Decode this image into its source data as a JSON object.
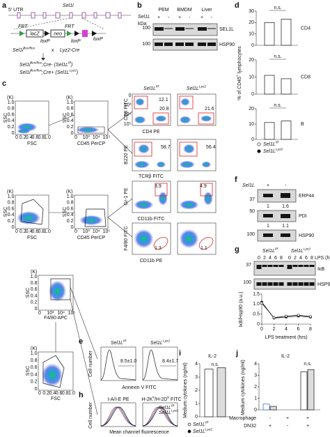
{
  "a": {
    "label": "a",
    "utr": "5' UTR",
    "gene": "Sel1l",
    "frt1": "FRT",
    "lacz": "lacZ",
    "loxp1": "loxP",
    "neo": "neo",
    "frt2": "FRT",
    "loxp2": "loxP",
    "loxp3": "loxP",
    "cross_left": [
      "Sel1l",
      "flox/flox"
    ],
    "x": "x",
    "cross_right": "Lyz2-Cre",
    "ff": [
      "Sel1l",
      "flox/flox",
      ";Cre- (Sel1L",
      "f/f",
      ")"
    ],
    "lyz": [
      "Sel1l",
      "flox/flox",
      ";Cre+ (Sel1L",
      "Lyz2",
      ")"
    ]
  },
  "b": {
    "label": "b",
    "gene": "Sel1L",
    "kda": "kDa",
    "groups": [
      "PEM",
      "BMDM",
      "Liver"
    ],
    "genotype": [
      "+",
      "-",
      "+",
      "-",
      "+",
      "-"
    ],
    "mw": [
      100,
      100
    ],
    "bands": [
      "SEL1L",
      "HSP90"
    ]
  },
  "c": {
    "label": "c",
    "ssc": "SSC",
    "fsc": "FSC",
    "k": "(K)",
    "cd45": "CD45 PerCP",
    "cols": [
      [
        "Sel1L",
        "f/f"
      ],
      [
        "Sel1L",
        "Lyz2"
      ]
    ],
    "cd8": "CD8 FITC",
    "cd4": "CD4 PE",
    "b220": "B220 PE",
    "tcrb": "TCRβ FITC",
    "gr1": "Gr-1 PE",
    "cd11b_fitc": "CD11b FITC",
    "f480_fitc": "F4/80 FITC",
    "cd11b_pe": "CD11b PE",
    "f480_apc": "F4/80 APC",
    "scatter_ticks": [
      "1.0",
      "0.8",
      "0.6",
      "0.4",
      "0.2",
      "0"
    ],
    "log_ticks": [
      "0",
      "10³",
      "10⁴",
      "10⁵"
    ],
    "gates": {
      "cd4_ff": [
        12.1,
        20.8
      ],
      "cd4_lyz": [
        21.6
      ],
      "b220": [
        58.7,
        56.4
      ],
      "gr1": [
        3.9,
        4.9
      ],
      "f480": [
        1.3,
        1.1
      ]
    }
  },
  "d": {
    "label": "d",
    "ylabel": [
      "% of CD45",
      "+",
      " lymphocytes"
    ],
    "ns": "n.s.",
    "plots": [
      {
        "name": "CD4",
        "ylim": [
          0,
          30
        ],
        "yticks": [
          0,
          10,
          20,
          30
        ],
        "values": [
          20,
          23
        ]
      },
      {
        "name": "CD8",
        "ylim": [
          0,
          20
        ],
        "yticks": [
          0,
          10,
          20
        ],
        "values": [
          11,
          9
        ]
      },
      {
        "name": "B",
        "ylim": [
          0,
          20
        ],
        "yticks": [
          0,
          10,
          20
        ],
        "values": [
          11,
          12
        ]
      }
    ],
    "legend": [
      [
        "Sel1L",
        "f/f"
      ],
      [
        "Sel1L",
        "Lyz2"
      ]
    ]
  },
  "e": {
    "label": "e",
    "cols": [
      [
        "Sel1L",
        "f/f"
      ],
      [
        "Sel1L",
        "Lyz2"
      ]
    ],
    "values": [
      "8.5±1.0",
      "8.4±1.7"
    ],
    "ylabel": "Cell number",
    "xlabel": "Annexin V FITC"
  },
  "f": {
    "label": "f",
    "gene": "Sel1L",
    "genotype": [
      "+",
      "-"
    ],
    "mw": [
      37,
      50,
      100
    ],
    "bands": [
      "ERP44",
      "PDI",
      "HSP90"
    ],
    "quant": [
      [
        1,
        1.6
      ],
      [
        1,
        1.1
      ]
    ]
  },
  "g": {
    "label": "g",
    "cols": [
      [
        "Sel1L",
        "f/f"
      ],
      [
        "Sel1L",
        "Lyz2"
      ]
    ],
    "times": [
      0,
      2,
      4,
      6,
      8
    ],
    "lps": "LPS (h)",
    "mw": [
      37,
      100
    ],
    "bands": [
      "IκB",
      "HSP90"
    ],
    "chart": {
      "type": "line",
      "ylabel": "IκB/Hsp90 (a.u.)",
      "xlabel": "LPS treatment (hrs)",
      "x": [
        0,
        2,
        4,
        6,
        8
      ],
      "xlim": [
        0,
        8
      ],
      "xticks": [
        0,
        2,
        4,
        6,
        8
      ],
      "ylim": [
        0,
        1.5
      ],
      "yticks": [
        0,
        0.5,
        {
          "value": 1,
          "label": "1.0"
        },
        1.5
      ],
      "series": [
        {
          "values": [
            1.1,
            0.3,
            0.35,
            0.4,
            0.35
          ]
        },
        {
          "values": [
            1.05,
            0.32,
            0.4,
            0.45,
            0.38
          ]
        }
      ]
    }
  },
  "h": {
    "label": "h",
    "titles": [
      "I-A/I-E PE",
      [
        "H-2K",
        "b",
        "/H-2D",
        "b",
        " FITC"
      ]
    ],
    "ylabel": "Cell number",
    "xlabel": "Mean channel fluorescence",
    "legend": [
      [
        "Sel1L",
        "f/f"
      ],
      [
        "Sel1L",
        "Lyz2"
      ]
    ]
  },
  "i": {
    "label": "i",
    "title": "IL-2",
    "ylabel": "Medium cytokines (ng/ml)",
    "ylim": [
      0,
      4
    ],
    "yticks": [
      0,
      1,
      2,
      3,
      4
    ],
    "ns": "n.s.",
    "values": [
      3.6,
      3.7
    ],
    "legend": [
      [
        "Sel1L",
        "f/f"
      ],
      [
        "Sel1L",
        "Lyz2"
      ]
    ]
  },
  "j": {
    "label": "j",
    "title": "IL-2",
    "ylabel": "Medium cytokines (ng/ml)",
    "ylim": [
      0,
      4
    ],
    "yticks": [
      0,
      1,
      2,
      3,
      4
    ],
    "ns": "n.s.",
    "groups": [
      [
        0.5,
        0.3
      ],
      [
        0,
        0
      ],
      [
        3.3,
        3.5
      ]
    ],
    "rows": [
      {
        "name": "Macrophage",
        "signs": [
          "-",
          "+",
          "+"
        ]
      },
      {
        "name": "DN32",
        "signs": [
          "+",
          "-",
          "+"
        ]
      }
    ]
  }
}
